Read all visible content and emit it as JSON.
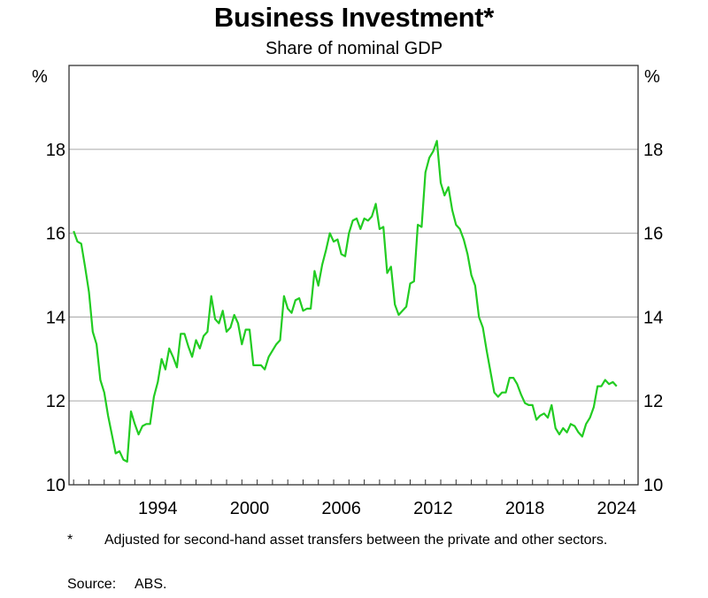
{
  "header": {
    "title": "Business Investment*",
    "subtitle": "Share of nominal GDP"
  },
  "axes": {
    "left_unit": "%",
    "right_unit": "%",
    "y_ticks": [
      "10",
      "12",
      "14",
      "16",
      "18"
    ],
    "x_ticks": [
      "1994",
      "2000",
      "2006",
      "2012",
      "2018",
      "2024"
    ]
  },
  "footnote": {
    "marker": "*",
    "text": "Adjusted for second-hand asset transfers between the private and other sectors."
  },
  "source": {
    "label": "Source:",
    "value": "ABS."
  },
  "colors": {
    "series": "#22cc22",
    "gridline": "#b3b3b3",
    "axis": "#333333"
  },
  "chart_data": {
    "type": "line",
    "title": "Business Investment*",
    "subtitle": "Share of nominal GDP",
    "xlabel": "",
    "ylabel": "%",
    "ylim": [
      10,
      20
    ],
    "xlim": [
      1988.7,
      2025.9
    ],
    "y_ticks": [
      10,
      12,
      14,
      16,
      18
    ],
    "x_ticks": [
      1994,
      2000,
      2006,
      2012,
      2018,
      2024
    ],
    "grid": true,
    "legend": "none",
    "frequency": "quarterly",
    "series": [
      {
        "name": "Business investment (% of nominal GDP)",
        "color": "#22cc22",
        "x": [
          1989.0,
          1989.25,
          1989.5,
          1989.75,
          1990.0,
          1990.25,
          1990.5,
          1990.75,
          1991.0,
          1991.25,
          1991.5,
          1991.75,
          1992.0,
          1992.25,
          1992.5,
          1992.75,
          1993.0,
          1993.25,
          1993.5,
          1993.75,
          1994.0,
          1994.25,
          1994.5,
          1994.75,
          1995.0,
          1995.25,
          1995.5,
          1995.75,
          1996.0,
          1996.25,
          1996.5,
          1996.75,
          1997.0,
          1997.25,
          1997.5,
          1997.75,
          1998.0,
          1998.25,
          1998.5,
          1998.75,
          1999.0,
          1999.25,
          1999.5,
          1999.75,
          2000.0,
          2000.25,
          2000.5,
          2000.75,
          2001.0,
          2001.25,
          2001.5,
          2001.75,
          2002.0,
          2002.25,
          2002.5,
          2002.75,
          2003.0,
          2003.25,
          2003.5,
          2003.75,
          2004.0,
          2004.25,
          2004.5,
          2004.75,
          2005.0,
          2005.25,
          2005.5,
          2005.75,
          2006.0,
          2006.25,
          2006.5,
          2006.75,
          2007.0,
          2007.25,
          2007.5,
          2007.75,
          2008.0,
          2008.25,
          2008.5,
          2008.75,
          2009.0,
          2009.25,
          2009.5,
          2009.75,
          2010.0,
          2010.25,
          2010.5,
          2010.75,
          2011.0,
          2011.25,
          2011.5,
          2011.75,
          2012.0,
          2012.25,
          2012.5,
          2012.75,
          2013.0,
          2013.25,
          2013.5,
          2013.75,
          2014.0,
          2014.25,
          2014.5,
          2014.75,
          2015.0,
          2015.25,
          2015.5,
          2015.75,
          2016.0,
          2016.25,
          2016.5,
          2016.75,
          2017.0,
          2017.25,
          2017.5,
          2017.75,
          2018.0,
          2018.25,
          2018.5,
          2018.75,
          2019.0,
          2019.25,
          2019.5,
          2019.75,
          2020.0,
          2020.25,
          2020.5,
          2020.75,
          2021.0,
          2021.25,
          2021.5,
          2021.75,
          2022.0,
          2022.25,
          2022.5,
          2022.75,
          2023.0,
          2023.25,
          2023.5,
          2023.75,
          2024.0,
          2024.25,
          2024.5
        ],
        "values": [
          16.05,
          15.8,
          15.75,
          15.2,
          14.6,
          13.65,
          13.35,
          12.5,
          12.2,
          11.65,
          11.2,
          10.75,
          10.8,
          10.6,
          10.55,
          11.75,
          11.45,
          11.2,
          11.4,
          11.45,
          11.45,
          12.1,
          12.45,
          13.0,
          12.75,
          13.25,
          13.05,
          12.8,
          13.6,
          13.6,
          13.3,
          13.05,
          13.45,
          13.25,
          13.55,
          13.65,
          14.5,
          13.95,
          13.85,
          14.15,
          13.65,
          13.75,
          14.05,
          13.85,
          13.35,
          13.7,
          13.7,
          12.85,
          12.85,
          12.85,
          12.75,
          13.05,
          13.2,
          13.35,
          13.45,
          14.5,
          14.2,
          14.1,
          14.4,
          14.45,
          14.15,
          14.2,
          14.2,
          15.1,
          14.75,
          15.25,
          15.6,
          16.0,
          15.8,
          15.85,
          15.5,
          15.45,
          16.0,
          16.3,
          16.35,
          16.1,
          16.35,
          16.3,
          16.4,
          16.7,
          16.1,
          16.15,
          15.05,
          15.2,
          14.3,
          14.05,
          14.15,
          14.25,
          14.8,
          14.85,
          16.2,
          16.15,
          17.45,
          17.8,
          17.95,
          18.2,
          17.2,
          16.9,
          17.1,
          16.55,
          16.2,
          16.1,
          15.85,
          15.5,
          15.0,
          14.75,
          14.0,
          13.75,
          13.2,
          12.7,
          12.2,
          12.1,
          12.2,
          12.2,
          12.55,
          12.55,
          12.4,
          12.15,
          11.95,
          11.9,
          11.9,
          11.55,
          11.65,
          11.7,
          11.6,
          11.9,
          11.35,
          11.2,
          11.35,
          11.25,
          11.45,
          11.4,
          11.25,
          11.15,
          11.45,
          11.6,
          11.85,
          12.35,
          12.35,
          12.5,
          12.4,
          12.45,
          12.35
        ]
      }
    ]
  }
}
